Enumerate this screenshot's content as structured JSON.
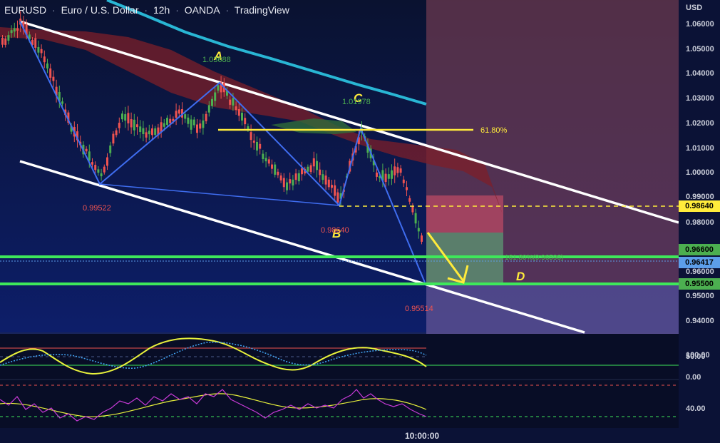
{
  "header": {
    "symbol": "EURUSD",
    "name": "Euro / U.S. Dollar",
    "interval": "12h",
    "broker": "OANDA",
    "platform": "TradingView"
  },
  "price_axis": {
    "currency": "USD",
    "ticks": [
      "1.06000",
      "1.05000",
      "1.04000",
      "1.03000",
      "1.02000",
      "1.01000",
      "1.00000",
      "0.99000",
      "0.98000",
      "0.96000",
      "0.95000",
      "0.94000"
    ],
    "tags": [
      {
        "text": "0.98640",
        "bg": "#ffeb3b",
        "fg": "#000000"
      },
      {
        "text": "0.96600",
        "bg": "#4caf50",
        "fg": "#000000"
      },
      {
        "text": "0.96417",
        "bg": "#5c9eea",
        "fg": "#000000"
      },
      {
        "text": "0.95500",
        "bg": "#4caf50",
        "fg": "#000000"
      }
    ]
  },
  "osc_axis": {
    "stoch_ticks": [
      "100.00",
      "50.00",
      "0.00"
    ],
    "rsi_ticks": [
      "40.00"
    ]
  },
  "time_axis": {
    "label": "10:00:00"
  },
  "annotations": {
    "point_a": "A",
    "point_b": "B",
    "point_c": "C",
    "point_d": "D",
    "a_price": "1.03688",
    "c_price": "1.01978",
    "low_1": "0.99522",
    "b_price": "0.98640",
    "d_price": "0.95514",
    "fib_61": "61.80%",
    "fib_161": "161.80%(0.96596)"
  },
  "colors": {
    "background": "#0b1640",
    "bullish": "#4caf50",
    "bearish": "#ef5350",
    "channel": "#ffffff",
    "harmonic": "#3f6df0",
    "moving_average": "#29b6d4",
    "fib_level": "#ffeb3b",
    "support": "#3ee85a",
    "stoch_k": "#e8f13c",
    "stoch_d": "#42a5f5",
    "rsi": "#c93ad8"
  },
  "icons": {
    "arrow": "yellow-down-arrow-icon"
  }
}
